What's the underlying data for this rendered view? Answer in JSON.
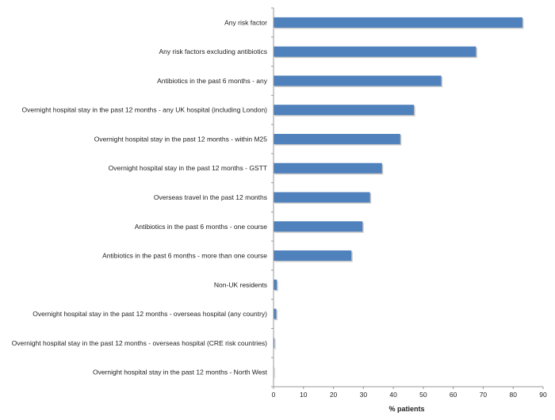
{
  "chart_data": {
    "type": "bar",
    "orientation": "horizontal",
    "title": "",
    "xlabel": "% patients",
    "ylabel": "",
    "xlim": [
      0,
      90
    ],
    "xticks": [
      0,
      10,
      20,
      30,
      40,
      50,
      60,
      70,
      80,
      90
    ],
    "grid": false,
    "categories": [
      "Any risk factor",
      "Any risk factors excluding antibiotics",
      "Antibiotics in the past 6 months - any",
      "Overnight hospital stay in the past 12 months - any UK hospital (including London)",
      "Overnight hospital stay in the past 12 months - within M25",
      "Overnight hospital stay in the past 12 months - GSTT",
      "Overseas travel in the past 12 months",
      "Antibiotics in the past 6 months - one course",
      "Antibiotics in the past 6 months - more than one course",
      "Non-UK residents",
      "Overnight hospital stay in the past 12 months - overseas hospital (any country)",
      "Overnight hospital stay in the past 12 months - overseas hospital (CRE risk countries)",
      "Overnight hospital stay in the past 12 months - North West"
    ],
    "values": [
      83.1,
      67.6,
      56.0,
      46.9,
      42.3,
      36.2,
      32.2,
      29.7,
      26.0,
      1.1,
      0.9,
      0.3,
      0.1
    ],
    "colors": {
      "bar": "#4f81bd",
      "axis": "#999999"
    }
  }
}
